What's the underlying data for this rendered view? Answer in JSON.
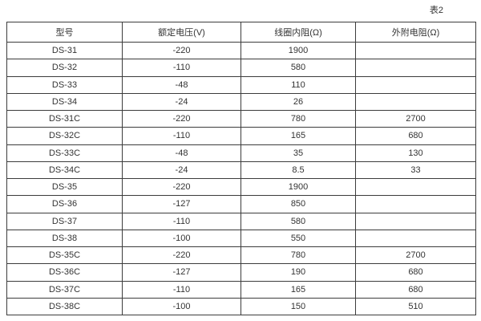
{
  "page": {
    "caption": "表2"
  },
  "table": {
    "columns": [
      "型号",
      "额定电压(V)",
      "线圈内阻(Ω)",
      "外附电阻(Ω)"
    ],
    "rows": [
      [
        "DS-31",
        "-220",
        "1900",
        ""
      ],
      [
        "DS-32",
        "-110",
        "580",
        ""
      ],
      [
        "DS-33",
        "-48",
        "110",
        ""
      ],
      [
        "DS-34",
        "-24",
        "26",
        ""
      ],
      [
        "DS-31C",
        "-220",
        "780",
        "2700"
      ],
      [
        "DS-32C",
        "-110",
        "165",
        "680"
      ],
      [
        "DS-33C",
        "-48",
        "35",
        "130"
      ],
      [
        "DS-34C",
        "-24",
        "8.5",
        "33"
      ],
      [
        "DS-35",
        "-220",
        "1900",
        ""
      ],
      [
        "DS-36",
        "-127",
        "850",
        ""
      ],
      [
        "DS-37",
        "-110",
        "580",
        ""
      ],
      [
        "DS-38",
        "-100",
        "550",
        ""
      ],
      [
        "DS-35C",
        "-220",
        "780",
        "2700"
      ],
      [
        "DS-36C",
        "-127",
        "190",
        "680"
      ],
      [
        "DS-37C",
        "-110",
        "165",
        "680"
      ],
      [
        "DS-38C",
        "-100",
        "150",
        "510"
      ]
    ],
    "colors": {
      "border": "#3c3c3c",
      "text": "#333333",
      "background": "#ffffff"
    }
  }
}
